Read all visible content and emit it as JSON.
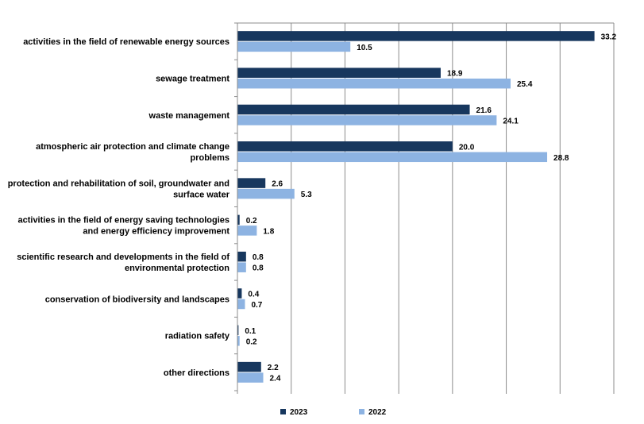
{
  "chart_data": {
    "type": "bar",
    "orientation": "horizontal",
    "categories": [
      [
        "activities in the field of renewable energy sources"
      ],
      [
        "sewage treatment"
      ],
      [
        "waste management"
      ],
      [
        "atmospheric air protection and climate change",
        "problems"
      ],
      [
        "protection and rehabilitation of soil, groundwater and",
        "surface water"
      ],
      [
        "activities in the field of energy saving technologies",
        "and energy efficiency improvement"
      ],
      [
        "scientific research and developments in the field of",
        "environmental protection"
      ],
      [
        "conservation of biodiversity and landscapes"
      ],
      [
        "radiation safety"
      ],
      [
        "other directions"
      ]
    ],
    "series": [
      {
        "name": "2023",
        "color": "#17375e",
        "values": [
          33.2,
          18.9,
          21.6,
          20.0,
          2.6,
          0.2,
          0.8,
          0.4,
          0.1,
          2.2
        ]
      },
      {
        "name": "2022",
        "color": "#8db3e2",
        "values": [
          10.5,
          25.4,
          24.1,
          28.8,
          5.3,
          1.8,
          0.8,
          0.7,
          0.2,
          2.4
        ]
      }
    ],
    "value_labels": {
      "2023": [
        "33.2",
        "18.9",
        "21.6",
        "20.0",
        "2.6",
        "0.2",
        "0.8",
        "0.4",
        "0.1",
        "2.2"
      ],
      "2022": [
        "10.5",
        "25.4",
        "24.1",
        "28.8",
        "5.3",
        "1.8",
        "0.8",
        "0.7",
        "0.2",
        "2.4"
      ]
    },
    "xlim": [
      0,
      35
    ],
    "x_gridline_step": 5,
    "grid": "vertical",
    "legend_position": "bottom",
    "title": "",
    "xlabel": "",
    "ylabel": ""
  }
}
